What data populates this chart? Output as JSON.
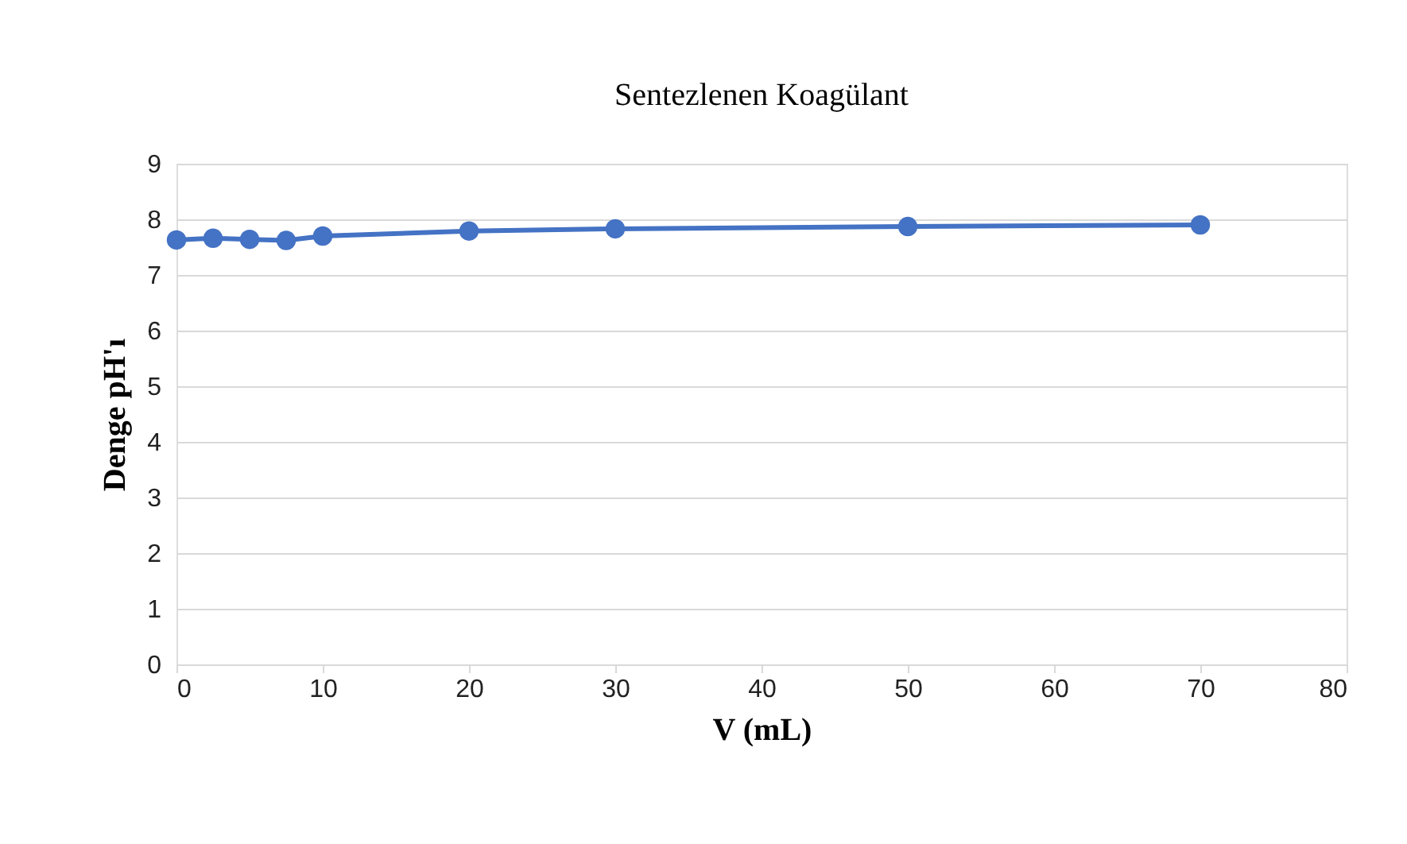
{
  "chart_data": {
    "type": "line",
    "title": "Sentezlenen Koagülant",
    "xlabel": "V (mL)",
    "ylabel": "Denge pH'ı",
    "x": [
      0,
      2.5,
      5,
      7.5,
      10,
      20,
      30,
      50,
      70
    ],
    "series": [
      {
        "color": "#4472c4",
        "values": [
          7.63,
          7.66,
          7.64,
          7.62,
          7.7,
          7.79,
          7.83,
          7.87,
          7.9
        ]
      }
    ],
    "xlim": [
      0,
      80
    ],
    "xticks": [
      0,
      10,
      20,
      30,
      40,
      50,
      60,
      70,
      80
    ],
    "ylim": [
      0,
      9
    ],
    "yticks": [
      0,
      1,
      2,
      3,
      4,
      5,
      6,
      7,
      8,
      9
    ],
    "grid": "y",
    "marker": "circle",
    "line_style": "solid"
  }
}
